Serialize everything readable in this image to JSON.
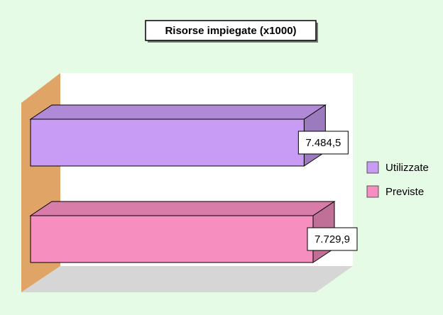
{
  "chart_data": {
    "type": "bar",
    "orientation": "horizontal",
    "title": "Risorse impiegate (x1000)",
    "categories": [
      null
    ],
    "series": [
      {
        "name": "Utilizzate",
        "color": "#c89cf4",
        "values": [
          7484.5
        ],
        "value_labels": [
          "7.484,5"
        ]
      },
      {
        "name": "Previste",
        "color": "#f68ec0",
        "values": [
          7729.9
        ],
        "value_labels": [
          "7.729,9"
        ]
      }
    ],
    "legend": "right"
  }
}
